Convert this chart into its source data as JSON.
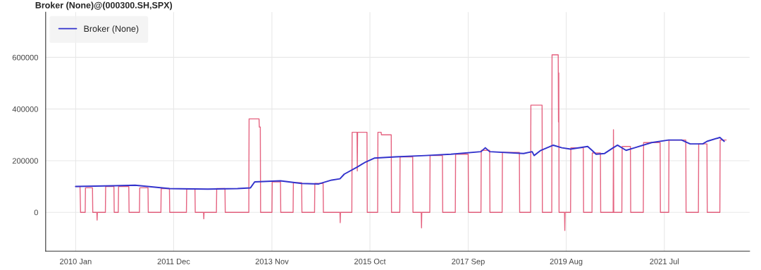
{
  "chart_data": {
    "type": "line",
    "title": "Broker (None)@(000300.SH,SPX)",
    "xlim": [
      "2009-06-01",
      "2023-03-01"
    ],
    "xticks": [
      {
        "value": "2010-01-01",
        "label": "2010 Jan"
      },
      {
        "value": "2011-12-01",
        "label": "2011 Dec"
      },
      {
        "value": "2013-11-01",
        "label": "2013 Nov"
      },
      {
        "value": "2015-10-01",
        "label": "2015 Oct"
      },
      {
        "value": "2017-09-01",
        "label": "2017 Sep"
      },
      {
        "value": "2019-08-01",
        "label": "2019 Aug"
      },
      {
        "value": "2021-07-01",
        "label": "2021 Jul"
      }
    ],
    "ylim": [
      -150000,
      775000
    ],
    "yticks": [
      0,
      200000,
      400000,
      600000
    ],
    "grid": true,
    "legend": "top left",
    "series": [
      {
        "name": "Broker (None)",
        "color": "#3333cc",
        "x": [
          "2010-01",
          "2010-10",
          "2011-03",
          "2011-11",
          "2012-08",
          "2013-03",
          "2013-06",
          "2013-07",
          "2014-01",
          "2014-06",
          "2014-10",
          "2015-01",
          "2015-03",
          "2015-04",
          "2015-07",
          "2015-08",
          "2015-09",
          "2015-11",
          "2016-04",
          "2016-11",
          "2017-05",
          "2017-12",
          "2018-01",
          "2018-02",
          "2018-10",
          "2018-12",
          "2018-12-15",
          "2019-02",
          "2019-05",
          "2019-07",
          "2019-09",
          "2020-01",
          "2020-02",
          "2020-03",
          "2020-05",
          "2020-07",
          "2020-08",
          "2020-10",
          "2020-12",
          "2021-04",
          "2021-08",
          "2021-11",
          "2022-01",
          "2022-04",
          "2022-05",
          "2022-08",
          "2022-09"
        ],
        "values": [
          100000,
          103000,
          105000,
          92000,
          90000,
          92000,
          95000,
          118000,
          122000,
          112000,
          110000,
          125000,
          130000,
          148000,
          175000,
          185000,
          195000,
          210000,
          215000,
          220000,
          225000,
          235000,
          250000,
          235000,
          228000,
          235000,
          220000,
          240000,
          260000,
          250000,
          245000,
          255000,
          240000,
          225000,
          228000,
          250000,
          260000,
          240000,
          250000,
          270000,
          280000,
          280000,
          265000,
          265000,
          275000,
          290000,
          275000
        ]
      },
      {
        "color": "#dc2f55",
        "x": [
          "2010-01-01",
          "2010-02-01",
          "2010-02-05",
          "2010-03-10",
          "2010-03-12",
          "2010-05-01",
          "2010-05-03",
          "2010-06-01",
          "2010-06-03",
          "2010-06-05",
          "2010-08-01",
          "2010-08-03",
          "2010-10-01",
          "2010-10-03",
          "2010-11-01",
          "2010-11-03",
          "2011-01-15",
          "2011-01-17",
          "2011-04-01",
          "2011-04-03",
          "2011-06-01",
          "2011-06-03",
          "2011-09-01",
          "2011-09-03",
          "2011-11-01",
          "2011-11-03",
          "2012-03-01",
          "2012-03-03",
          "2012-05-01",
          "2012-05-03",
          "2012-07-01",
          "2012-07-03",
          "2012-07-05",
          "2012-10-01",
          "2012-10-03",
          "2012-12-01",
          "2012-12-03",
          "2013-05-20",
          "2013-05-22",
          "2013-08-01",
          "2013-08-03",
          "2013-08-10",
          "2013-08-12",
          "2013-11-01",
          "2013-11-03",
          "2014-01-01",
          "2014-01-03",
          "2014-04-01",
          "2014-04-03",
          "2014-06-01",
          "2014-06-03",
          "2014-09-01",
          "2014-09-03",
          "2014-11-01",
          "2014-11-03",
          "2015-03-01",
          "2015-03-03",
          "2015-03-05",
          "2015-05-25",
          "2015-05-27",
          "2015-07-01",
          "2015-07-03",
          "2015-07-05",
          "2015-09-10",
          "2015-09-12",
          "2015-11-25",
          "2015-11-27",
          "2015-12-20",
          "2015-12-22",
          "2016-03-01",
          "2016-03-03",
          "2016-05-01",
          "2016-05-03",
          "2016-08-01",
          "2016-08-03",
          "2016-10-01",
          "2016-10-03",
          "2016-10-05",
          "2016-12-01",
          "2016-12-03",
          "2017-03-01",
          "2017-03-03",
          "2017-06-01",
          "2017-06-03",
          "2017-09-01",
          "2017-09-03",
          "2017-12-01",
          "2017-12-03",
          "2018-02-01",
          "2018-02-03",
          "2018-05-01",
          "2018-05-03",
          "2018-09-01",
          "2018-09-03",
          "2018-11-20",
          "2018-11-22",
          "2019-02-10",
          "2019-02-12",
          "2019-04-20",
          "2019-04-22",
          "2019-06-05",
          "2019-06-07",
          "2019-06-09",
          "2019-06-11",
          "2019-07-20",
          "2019-07-22",
          "2019-07-24",
          "2019-09-01",
          "2019-09-03",
          "2019-12-01",
          "2019-12-03",
          "2020-02-01",
          "2020-02-03",
          "2020-04-01",
          "2020-04-03",
          "2020-07-01",
          "2020-07-03",
          "2020-07-05",
          "2020-09-01",
          "2020-09-03",
          "2020-11-01",
          "2020-11-03",
          "2021-02-01",
          "2021-02-03",
          "2021-06-01",
          "2021-06-03",
          "2021-08-01",
          "2021-08-03",
          "2021-12-01",
          "2021-12-03",
          "2022-03-01",
          "2022-03-03",
          "2022-05-01",
          "2022-05-03",
          "2022-08-01",
          "2022-08-03",
          "2022-09-15"
        ],
        "values": [
          100000,
          100000,
          0,
          0,
          95000,
          95000,
          0,
          0,
          -30000,
          0,
          0,
          100000,
          100000,
          0,
          0,
          100000,
          100000,
          0,
          0,
          95000,
          95000,
          0,
          0,
          92000,
          92000,
          0,
          0,
          90000,
          90000,
          0,
          0,
          -25000,
          0,
          0,
          92000,
          92000,
          0,
          0,
          362000,
          362000,
          330000,
          330000,
          0,
          0,
          118000,
          118000,
          0,
          0,
          115000,
          115000,
          0,
          0,
          112000,
          112000,
          0,
          0,
          -40000,
          0,
          0,
          310000,
          310000,
          160000,
          310000,
          310000,
          0,
          0,
          310000,
          310000,
          300000,
          300000,
          0,
          0,
          215000,
          215000,
          0,
          0,
          -60000,
          0,
          0,
          220000,
          220000,
          0,
          0,
          225000,
          225000,
          0,
          0,
          240000,
          240000,
          0,
          0,
          232000,
          232000,
          0,
          0,
          415000,
          415000,
          0,
          0,
          610000,
          610000,
          350000,
          540000,
          0,
          0,
          -70000,
          0,
          0,
          250000,
          250000,
          0,
          0,
          230000,
          230000,
          0,
          0,
          320000,
          0,
          0,
          255000,
          255000,
          0,
          0,
          270000,
          270000,
          0,
          0,
          280000,
          280000,
          0,
          0,
          265000,
          265000,
          0,
          0,
          280000,
          280000
        ]
      }
    ]
  }
}
